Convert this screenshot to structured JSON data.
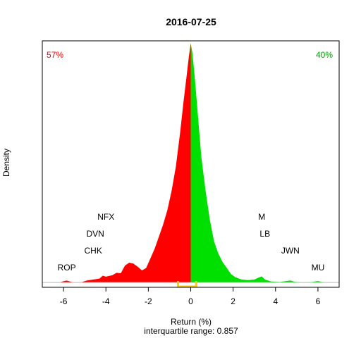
{
  "chart_data": {
    "type": "area",
    "title": "2016-07-25",
    "xlabel": "Return (%)",
    "ylabel": "Density",
    "subtitle": "interquartile range: 0.857",
    "xlim": [
      -7,
      7
    ],
    "ylim": [
      -0.02,
      1.0
    ],
    "grid": false,
    "x_ticks": [
      "-6",
      "-4",
      "-2",
      "0",
      "2",
      "4",
      "6"
    ],
    "x_tick_values": [
      -6,
      -4,
      -2,
      0,
      2,
      4,
      6
    ],
    "split_at": 0,
    "negative_color": "#ff0000",
    "positive_color": "#00e000",
    "iqr_color": "#ffcc00",
    "iqr": [
      -0.6,
      0.257
    ],
    "negative_pct": "57%",
    "positive_pct": "40%",
    "density": [
      [
        -6.2,
        0.0
      ],
      [
        -6.0,
        0.005
      ],
      [
        -5.85,
        0.008
      ],
      [
        -5.7,
        0.004
      ],
      [
        -5.5,
        0.0
      ],
      [
        -5.2,
        0.0
      ],
      [
        -4.9,
        0.008
      ],
      [
        -4.6,
        0.012
      ],
      [
        -4.3,
        0.016
      ],
      [
        -4.15,
        0.028
      ],
      [
        -4.0,
        0.024
      ],
      [
        -3.7,
        0.03
      ],
      [
        -3.5,
        0.04
      ],
      [
        -3.3,
        0.038
      ],
      [
        -3.1,
        0.07
      ],
      [
        -2.9,
        0.082
      ],
      [
        -2.7,
        0.078
      ],
      [
        -2.5,
        0.065
      ],
      [
        -2.3,
        0.05
      ],
      [
        -2.1,
        0.06
      ],
      [
        -1.9,
        0.1
      ],
      [
        -1.7,
        0.14
      ],
      [
        -1.5,
        0.19
      ],
      [
        -1.3,
        0.24
      ],
      [
        -1.1,
        0.3
      ],
      [
        -0.9,
        0.38
      ],
      [
        -0.7,
        0.48
      ],
      [
        -0.5,
        0.62
      ],
      [
        -0.35,
        0.74
      ],
      [
        -0.2,
        0.85
      ],
      [
        -0.08,
        0.94
      ],
      [
        0.0,
        0.99
      ],
      [
        0.08,
        0.95
      ],
      [
        0.2,
        0.84
      ],
      [
        0.35,
        0.68
      ],
      [
        0.5,
        0.52
      ],
      [
        0.7,
        0.38
      ],
      [
        0.9,
        0.26
      ],
      [
        1.1,
        0.17
      ],
      [
        1.3,
        0.12
      ],
      [
        1.5,
        0.085
      ],
      [
        1.7,
        0.06
      ],
      [
        1.9,
        0.035
      ],
      [
        2.1,
        0.022
      ],
      [
        2.4,
        0.012
      ],
      [
        2.7,
        0.01
      ],
      [
        3.0,
        0.012
      ],
      [
        3.2,
        0.02
      ],
      [
        3.35,
        0.025
      ],
      [
        3.5,
        0.012
      ],
      [
        3.8,
        0.004
      ],
      [
        4.2,
        0.002
      ],
      [
        4.5,
        0.006
      ],
      [
        4.7,
        0.008
      ],
      [
        4.9,
        0.003
      ],
      [
        5.3,
        0.0
      ],
      [
        5.7,
        0.002
      ],
      [
        6.0,
        0.006
      ],
      [
        6.2,
        0.002
      ],
      [
        6.4,
        0.0
      ]
    ],
    "annotations": [
      {
        "label": "ROP",
        "x": -5.85,
        "level": 0.05
      },
      {
        "label": "CHK",
        "x": -4.6,
        "level": 0.12
      },
      {
        "label": "DVN",
        "x": -4.5,
        "level": 0.19
      },
      {
        "label": "NFX",
        "x": -4.0,
        "level": 0.26
      },
      {
        "label": "M",
        "x": 3.35,
        "level": 0.26
      },
      {
        "label": "LB",
        "x": 3.5,
        "level": 0.19
      },
      {
        "label": "JWN",
        "x": 4.7,
        "level": 0.12
      },
      {
        "label": "MU",
        "x": 6.0,
        "level": 0.05
      }
    ]
  }
}
